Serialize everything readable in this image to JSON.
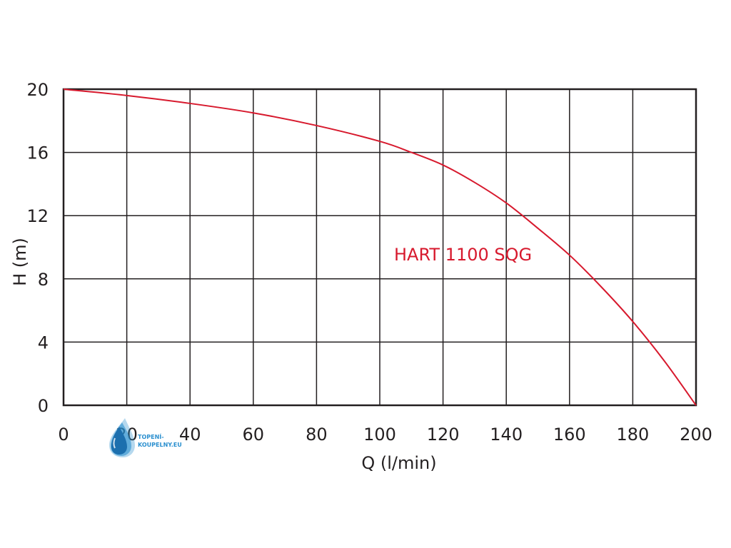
{
  "chart_data": {
    "type": "line",
    "xlabel": "Q (l/min)",
    "ylabel": "H (m)",
    "xlim": [
      0,
      200
    ],
    "ylim": [
      0,
      20
    ],
    "x_ticks": [
      "0",
      "20",
      "40",
      "60",
      "80",
      "100",
      "120",
      "140",
      "160",
      "180",
      "200"
    ],
    "y_ticks": [
      "0",
      "4",
      "8",
      "12",
      "16",
      "20"
    ],
    "grid": true,
    "series": [
      {
        "name": "HART 1100 SQG",
        "color": "#d7192d",
        "x": [
          0,
          20,
          40,
          60,
          80,
          100,
          110,
          120,
          130,
          140,
          150,
          160,
          170,
          180,
          190,
          200
        ],
        "y": [
          20,
          19.6,
          19.1,
          18.5,
          17.7,
          16.7,
          16.0,
          15.2,
          14.1,
          12.8,
          11.2,
          9.5,
          7.5,
          5.3,
          2.8,
          0
        ]
      }
    ]
  },
  "watermark": {
    "line1": "TOPENÍ-",
    "line2": "KOUPELNY.EU",
    "color": "#2a8fcf"
  }
}
